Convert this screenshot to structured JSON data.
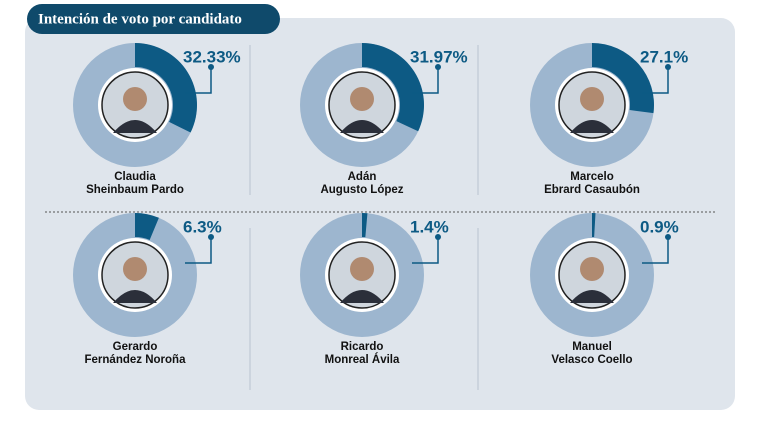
{
  "title": "Intención de voto por candidato",
  "chart_data": [
    {
      "type": "pie",
      "title": [
        "Claudia",
        "Sheinbaum Pardo"
      ],
      "values": [
        32.33
      ],
      "value_labels": [
        "32.33%"
      ],
      "color": "#0d5a84"
    },
    {
      "type": "pie",
      "title": [
        "Adán",
        "Augusto López"
      ],
      "values": [
        31.97
      ],
      "value_labels": [
        "31.97%"
      ],
      "color": "#0d5a84"
    },
    {
      "type": "pie",
      "title": [
        "Marcelo",
        "Ebrard Casaubón"
      ],
      "values": [
        27.1
      ],
      "value_labels": [
        "27.1%"
      ],
      "color": "#0d5a84"
    },
    {
      "type": "pie",
      "title": [
        "Gerardo",
        "Fernández Noroña"
      ],
      "values": [
        6.3
      ],
      "value_labels": [
        "6.3%"
      ],
      "color": "#0d5a84"
    },
    {
      "type": "pie",
      "title": [
        "Ricardo",
        "Monreal Ávila"
      ],
      "values": [
        1.4
      ],
      "value_labels": [
        "1.4%"
      ],
      "color": "#0d5a84"
    },
    {
      "type": "pie",
      "title": [
        "Manuel",
        "Velasco Coello"
      ],
      "values": [
        0.9
      ],
      "value_labels": [
        "0.9%"
      ],
      "color": "#0d5a84"
    }
  ]
}
